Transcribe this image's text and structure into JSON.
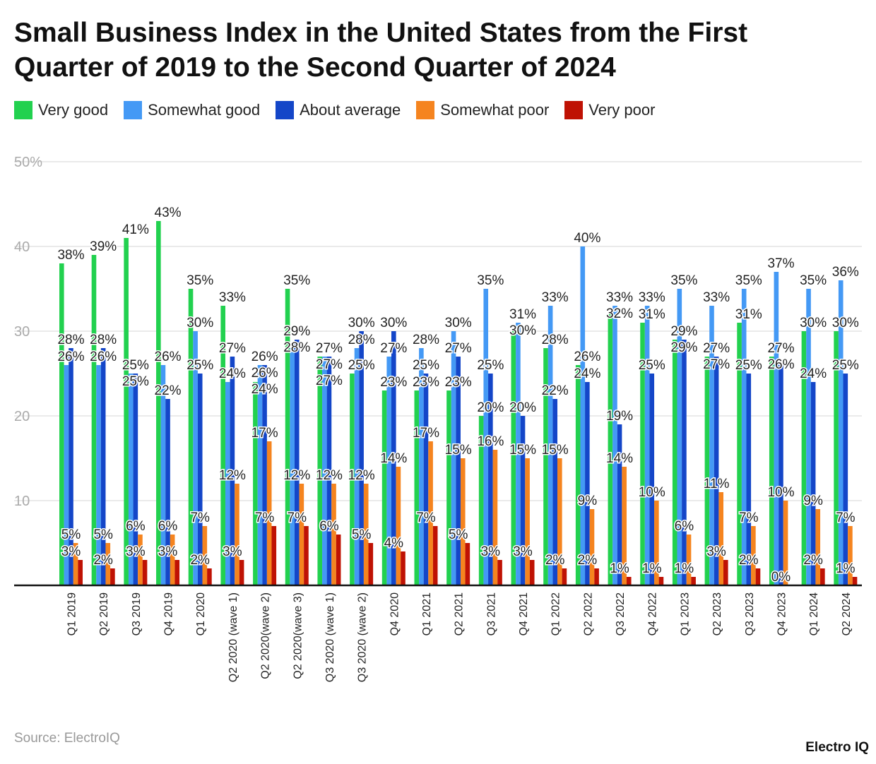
{
  "chart_data": {
    "type": "bar",
    "title": "Small Business Index in the United States from the First Quarter of 2019 to the Second Quarter of 2024",
    "categories": [
      "Q1 2019",
      "Q2 2019",
      "Q3 2019",
      "Q4 2019",
      "Q1 2020",
      "Q2 2020 (wave 1)",
      "Q2 2020(wave 2)",
      "Q2 2020(wave 3)",
      "Q3 2020 (wave 1)",
      "Q3 2020 (wave 2)",
      "Q4 2020",
      "Q1 2021",
      "Q2 2021",
      "Q3 2021",
      "Q4 2021",
      "Q1 2022",
      "Q2 2022",
      "Q3 2022",
      "Q4 2022",
      "Q1 2023",
      "Q2 2023",
      "Q3 2023",
      "Q4 2023",
      "Q1 2024",
      "Q2 2024"
    ],
    "series": [
      {
        "name": "Very good",
        "color": "#22d14f",
        "values": [
          38,
          39,
          41,
          43,
          35,
          33,
          24,
          35,
          27,
          25,
          23,
          23,
          23,
          20,
          30,
          28,
          26,
          32,
          31,
          29,
          27,
          31,
          27,
          30,
          30
        ]
      },
      {
        "name": "Somewhat good",
        "color": "#4499f5",
        "values": [
          26,
          26,
          25,
          26,
          30,
          24,
          26,
          28,
          27,
          28,
          27,
          28,
          30,
          35,
          31,
          33,
          40,
          33,
          33,
          35,
          33,
          35,
          37,
          35,
          36
        ]
      },
      {
        "name": "About average",
        "color": "#1446c8",
        "values": [
          28,
          28,
          25,
          22,
          25,
          27,
          26,
          29,
          27,
          30,
          30,
          25,
          27,
          25,
          20,
          22,
          24,
          19,
          25,
          29,
          27,
          25,
          26,
          24,
          25
        ]
      },
      {
        "name": "Somewhat poor",
        "color": "#f5841f",
        "values": [
          5,
          5,
          6,
          6,
          7,
          12,
          17,
          12,
          12,
          12,
          14,
          17,
          15,
          16,
          15,
          15,
          9,
          14,
          10,
          6,
          11,
          7,
          10,
          9,
          7
        ]
      },
      {
        "name": "Very poor",
        "color": "#bf1204",
        "values": [
          3,
          2,
          3,
          3,
          2,
          3,
          7,
          7,
          6,
          5,
          4,
          7,
          5,
          3,
          3,
          2,
          2,
          1,
          1,
          1,
          3,
          2,
          0,
          2,
          1
        ]
      }
    ],
    "yticks": [
      "",
      "10",
      "20",
      "30",
      "40",
      "50%"
    ],
    "ylim": [
      0,
      50
    ],
    "grid": true,
    "legend_position": "top-left",
    "data_label_suffix": "%"
  },
  "footer": {
    "source": "Source: ElectroIQ",
    "brand": "Electro IQ"
  }
}
